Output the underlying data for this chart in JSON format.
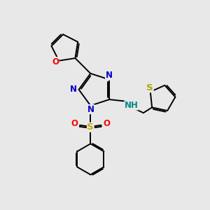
{
  "bg_color": "#e8e8e8",
  "bond_color": "#000000",
  "N_color": "#0000cc",
  "O_color": "#ff0000",
  "S_triazole_color": "#ccaa00",
  "S_thio_color": "#aaaa00",
  "NH_color": "#008888",
  "line_width": 1.4,
  "fs": 8.5,
  "xlim": [
    0,
    10
  ],
  "ylim": [
    0,
    10
  ]
}
